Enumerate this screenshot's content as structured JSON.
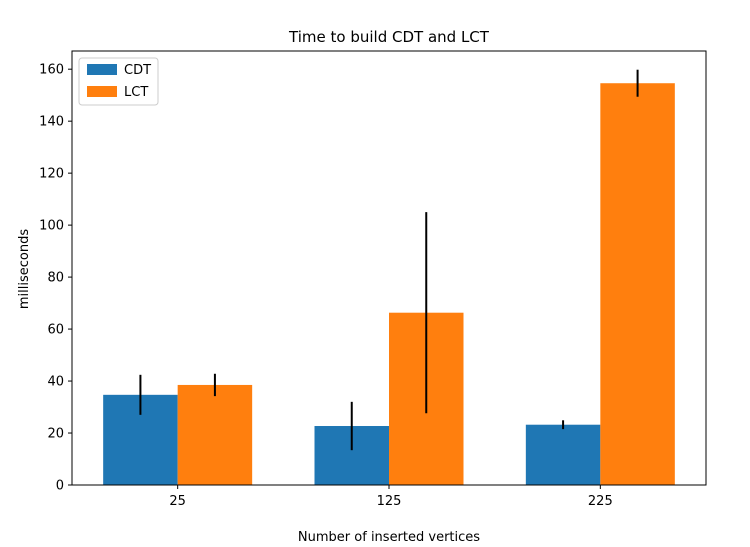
{
  "chart_data": {
    "type": "bar",
    "title": "Time to build CDT and LCT",
    "xlabel": "Number of inserted vertices",
    "ylabel": "milliseconds",
    "categories": [
      "25",
      "125",
      "225"
    ],
    "ylim": [
      0,
      167
    ],
    "yticks": [
      0,
      20,
      40,
      60,
      80,
      100,
      120,
      140,
      160
    ],
    "grid": false,
    "legend_position": "top-left",
    "series": [
      {
        "name": "CDT",
        "color": "#1f77b4",
        "values": [
          34.7,
          22.7,
          23.2
        ],
        "errors": [
          7.7,
          9.3,
          1.7
        ]
      },
      {
        "name": "LCT",
        "color": "#ff7f0e",
        "values": [
          38.5,
          66.3,
          154.6
        ],
        "errors": [
          4.3,
          38.7,
          5.2
        ]
      }
    ]
  }
}
